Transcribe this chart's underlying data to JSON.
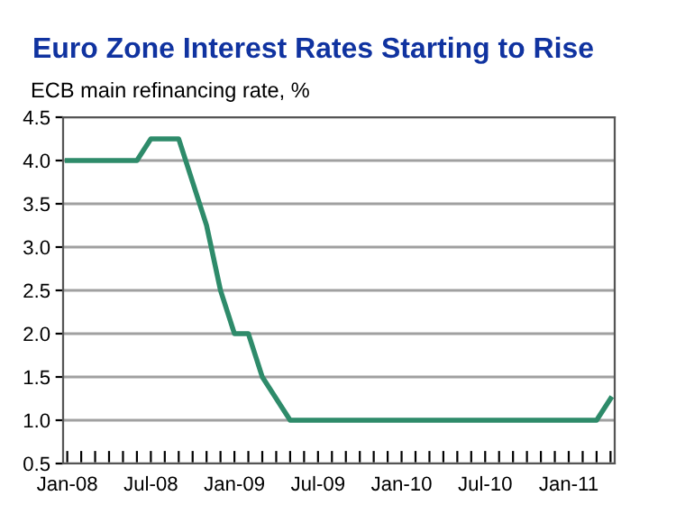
{
  "chart_data": {
    "type": "line",
    "title": "Euro Zone Interest Rates Starting to Rise",
    "subtitle": "ECB main refinancing rate, %",
    "categories": [
      "Jan-08",
      null,
      null,
      null,
      null,
      null,
      "Jul-08",
      null,
      null,
      null,
      null,
      null,
      "Jan-09",
      null,
      null,
      null,
      null,
      null,
      "Jul-09",
      null,
      null,
      null,
      null,
      null,
      "Jan-10",
      null,
      null,
      null,
      null,
      null,
      "Jul-10",
      null,
      null,
      null,
      null,
      null,
      "Jan-11",
      null,
      null,
      null
    ],
    "series": [
      {
        "color": "#2e8b6a",
        "values": [
          4.0,
          4.0,
          4.0,
          4.0,
          4.0,
          4.0,
          4.25,
          4.25,
          4.25,
          3.75,
          3.25,
          2.5,
          2.0,
          2.0,
          1.5,
          1.25,
          1.0,
          1.0,
          1.0,
          1.0,
          1.0,
          1.0,
          1.0,
          1.0,
          1.0,
          1.0,
          1.0,
          1.0,
          1.0,
          1.0,
          1.0,
          1.0,
          1.0,
          1.0,
          1.0,
          1.0,
          1.0,
          1.0,
          1.0,
          1.25
        ]
      }
    ],
    "ylim": [
      0.5,
      4.5
    ],
    "yticks": [
      {
        "value": 0.5,
        "label": "0.5"
      },
      {
        "value": 1.0,
        "label": "1.0"
      },
      {
        "value": 1.5,
        "label": "1.5"
      },
      {
        "value": 2.0,
        "label": "2.0"
      },
      {
        "value": 2.5,
        "label": "2.5"
      },
      {
        "value": 3.0,
        "label": "3.0"
      },
      {
        "value": 3.5,
        "label": "3.5"
      },
      {
        "value": 4.0,
        "label": "4.0"
      },
      {
        "value": 4.5,
        "label": "4.5"
      }
    ],
    "grid": "y",
    "legend": false,
    "marker": "none",
    "line_style": "solid"
  }
}
